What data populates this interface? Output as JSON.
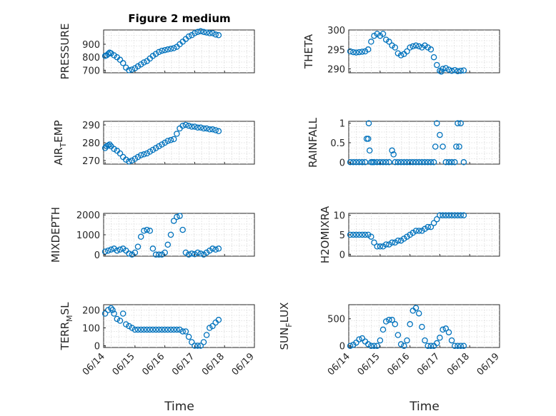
{
  "figure_title": "Figure 2 medium",
  "x_label": "Time",
  "x_tick_labels": [
    "06/14",
    "06/15",
    "06/16",
    "06/17",
    "06/18",
    "06/19"
  ],
  "marker_color": "#0072BD",
  "chart_data": [
    {
      "type": "scatter",
      "ylabel": "PRESSURE",
      "ylim": [
        680,
        1010
      ],
      "yticks": [
        700,
        800,
        900
      ],
      "ytick_labels": [
        "700",
        "800",
        "900"
      ],
      "series": [
        {
          "x": [
            0,
            0.05,
            0.1,
            0.15,
            0.2,
            0.3,
            0.4,
            0.5,
            0.6,
            0.7,
            0.8,
            0.9,
            1.0,
            1.1,
            1.2,
            1.3,
            1.4,
            1.5,
            1.6,
            1.7,
            1.8,
            1.9,
            2.0,
            2.1,
            2.2,
            2.3,
            2.4,
            2.5,
            2.6,
            2.7,
            2.8,
            2.9,
            3.0,
            3.1,
            3.2,
            3.3,
            3.4,
            3.5,
            3.6,
            3.7,
            3.8
          ],
          "y": [
            810,
            815,
            825,
            835,
            830,
            815,
            800,
            780,
            755,
            720,
            700,
            705,
            715,
            730,
            745,
            760,
            770,
            790,
            810,
            825,
            840,
            850,
            855,
            860,
            865,
            870,
            880,
            900,
            920,
            940,
            960,
            970,
            985,
            995,
            1000,
            995,
            990,
            985,
            985,
            975,
            970
          ]
        }
      ]
    },
    {
      "type": "scatter",
      "ylabel": "THETA",
      "ylim": [
        289,
        300
      ],
      "yticks": [
        290,
        295,
        300
      ],
      "ytick_labels": [
        "290",
        "295",
        "300"
      ],
      "series": [
        {
          "x": [
            0,
            0.1,
            0.2,
            0.3,
            0.4,
            0.5,
            0.6,
            0.7,
            0.8,
            0.9,
            1.0,
            1.1,
            1.2,
            1.3,
            1.4,
            1.5,
            1.6,
            1.7,
            1.8,
            1.9,
            2.0,
            2.1,
            2.2,
            2.3,
            2.4,
            2.5,
            2.6,
            2.7,
            2.8,
            2.9,
            3.0,
            3.05,
            3.1,
            3.2,
            3.3,
            3.4,
            3.5,
            3.6,
            3.7,
            3.8
          ],
          "y": [
            294.5,
            294.3,
            294.2,
            294.3,
            294.4,
            294.5,
            295,
            297,
            298.5,
            299,
            298.5,
            299,
            297.5,
            297,
            296,
            295.5,
            294,
            293.5,
            293.8,
            294.5,
            295.5,
            295.8,
            296,
            295.8,
            295.5,
            296,
            295.5,
            295,
            293,
            291,
            289.5,
            289.3,
            290,
            290.2,
            289.8,
            289.5,
            289.7,
            289.4,
            289.5,
            289.6
          ]
        }
      ]
    },
    {
      "type": "scatter",
      "ylabel": "AIR_T EMP",
      "ylim": [
        268,
        292
      ],
      "yticks": [
        270,
        280,
        290
      ],
      "ytick_labels": [
        "270",
        "280",
        "290"
      ],
      "series": [
        {
          "x": [
            0,
            0.05,
            0.1,
            0.15,
            0.2,
            0.3,
            0.4,
            0.5,
            0.6,
            0.7,
            0.8,
            0.9,
            1.0,
            1.1,
            1.2,
            1.3,
            1.4,
            1.5,
            1.6,
            1.7,
            1.8,
            1.9,
            2.0,
            2.1,
            2.2,
            2.3,
            2.4,
            2.5,
            2.6,
            2.7,
            2.8,
            2.9,
            3.0,
            3.1,
            3.2,
            3.3,
            3.4,
            3.5,
            3.6,
            3.7,
            3.8
          ],
          "y": [
            277,
            278,
            278.5,
            279,
            278,
            276.5,
            275.5,
            274,
            272,
            270.5,
            269.5,
            270,
            271,
            272,
            273,
            273.5,
            274,
            275,
            276,
            277,
            278,
            279,
            280,
            281,
            281.5,
            282,
            285,
            288,
            289.5,
            290,
            289.5,
            289,
            289,
            288.5,
            288.5,
            288,
            288,
            287.5,
            287.5,
            287,
            286.5
          ]
        }
      ]
    },
    {
      "type": "scatter",
      "ylabel": "RAINFALL",
      "ylim": [
        -0.05,
        1.05
      ],
      "yticks": [
        0,
        0.5,
        1
      ],
      "ytick_labels": [
        "0",
        "0.5",
        "1"
      ],
      "series": [
        {
          "x": [
            0,
            0.1,
            0.2,
            0.3,
            0.4,
            0.5,
            0.55,
            0.6,
            0.62,
            0.65,
            0.7,
            0.75,
            0.8,
            0.9,
            1.0,
            1.1,
            1.2,
            1.3,
            1.4,
            1.45,
            1.5,
            1.6,
            1.7,
            1.8,
            1.9,
            2.0,
            2.1,
            2.2,
            2.3,
            2.4,
            2.5,
            2.6,
            2.7,
            2.8,
            2.85,
            2.9,
            3.0,
            3.1,
            3.2,
            3.3,
            3.4,
            3.5,
            3.55,
            3.6,
            3.65,
            3.7,
            3.8
          ],
          "y": [
            0,
            0,
            0,
            0,
            0,
            0,
            0.6,
            0.6,
            1,
            0.3,
            0,
            0,
            0,
            0,
            0,
            0,
            0,
            0,
            0.3,
            0.2,
            0,
            0,
            0,
            0,
            0,
            0,
            0,
            0,
            0,
            0,
            0,
            0,
            0,
            0,
            0.4,
            1,
            0.7,
            0.4,
            0,
            0,
            0,
            0,
            0.4,
            1,
            0.4,
            1,
            0
          ]
        }
      ]
    },
    {
      "type": "scatter",
      "ylabel": "MIXDEPTH",
      "ylim": [
        -80,
        2080
      ],
      "yticks": [
        0,
        1000,
        2000
      ],
      "ytick_labels": [
        "0",
        "1000",
        "2000"
      ],
      "series": [
        {
          "x": [
            0,
            0.1,
            0.2,
            0.3,
            0.4,
            0.5,
            0.6,
            0.7,
            0.8,
            0.9,
            1.0,
            1.1,
            1.2,
            1.3,
            1.4,
            1.5,
            1.6,
            1.7,
            1.8,
            1.9,
            2.0,
            2.1,
            2.2,
            2.3,
            2.4,
            2.5,
            2.6,
            2.7,
            2.8,
            2.9,
            3.0,
            3.1,
            3.2,
            3.3,
            3.4,
            3.5,
            3.6,
            3.7,
            3.8
          ],
          "y": [
            150,
            200,
            250,
            300,
            200,
            250,
            300,
            200,
            50,
            0,
            100,
            400,
            900,
            1200,
            1250,
            1200,
            300,
            0,
            0,
            0,
            100,
            500,
            1000,
            1700,
            1900,
            1950,
            1250,
            100,
            0,
            50,
            20,
            100,
            50,
            0,
            100,
            200,
            300,
            250,
            300
          ]
        }
      ]
    },
    {
      "type": "scatter",
      "ylabel": "H2OMIXRA",
      "ylim": [
        -0.5,
        10.5
      ],
      "yticks": [
        0,
        5,
        10
      ],
      "ytick_labels": [
        "0",
        "5",
        "10"
      ],
      "series": [
        {
          "x": [
            0,
            0.1,
            0.2,
            0.3,
            0.4,
            0.5,
            0.6,
            0.7,
            0.8,
            0.9,
            1.0,
            1.1,
            1.2,
            1.3,
            1.4,
            1.5,
            1.6,
            1.7,
            1.8,
            1.9,
            2.0,
            2.1,
            2.2,
            2.3,
            2.4,
            2.5,
            2.6,
            2.7,
            2.8,
            2.9,
            3.0,
            3.1,
            3.2,
            3.3,
            3.4,
            3.5,
            3.6,
            3.7,
            3.8
          ],
          "y": [
            5,
            5,
            5,
            5,
            5,
            5,
            5,
            4.5,
            3,
            2,
            2,
            2,
            2.5,
            2.5,
            3,
            3,
            3.5,
            3.5,
            4,
            4.5,
            5,
            5.5,
            6,
            6,
            6,
            6.5,
            7,
            7,
            8,
            9,
            10,
            10,
            10,
            10,
            10,
            10,
            10,
            10,
            10
          ]
        }
      ]
    },
    {
      "type": "scatter",
      "ylabel": "TERR_M SL",
      "ylim": [
        -10,
        230
      ],
      "yticks": [
        0,
        100,
        200
      ],
      "ytick_labels": [
        "0",
        "100",
        "200"
      ],
      "series": [
        {
          "x": [
            0,
            0.1,
            0.2,
            0.25,
            0.3,
            0.4,
            0.5,
            0.6,
            0.7,
            0.8,
            0.9,
            1.0,
            1.1,
            1.2,
            1.3,
            1.4,
            1.5,
            1.6,
            1.7,
            1.8,
            1.9,
            2.0,
            2.1,
            2.2,
            2.3,
            2.4,
            2.5,
            2.6,
            2.7,
            2.8,
            2.9,
            3.0,
            3.1,
            3.2,
            3.3,
            3.4,
            3.5,
            3.6,
            3.7,
            3.8
          ],
          "y": [
            180,
            200,
            210,
            200,
            180,
            150,
            140,
            180,
            120,
            110,
            100,
            90,
            90,
            90,
            90,
            90,
            90,
            90,
            90,
            90,
            90,
            90,
            90,
            90,
            90,
            90,
            90,
            80,
            80,
            50,
            20,
            0,
            0,
            0,
            20,
            60,
            100,
            110,
            130,
            145
          ]
        }
      ]
    },
    {
      "type": "scatter",
      "ylabel": "SUN_F LUX",
      "ylim": [
        -30,
        760
      ],
      "yticks": [
        0,
        500
      ],
      "ytick_labels": [
        "0",
        "500"
      ],
      "series": [
        {
          "x": [
            0,
            0.1,
            0.2,
            0.3,
            0.4,
            0.5,
            0.6,
            0.7,
            0.8,
            0.9,
            1.0,
            1.1,
            1.2,
            1.3,
            1.4,
            1.5,
            1.6,
            1.7,
            1.8,
            1.9,
            2.0,
            2.1,
            2.2,
            2.3,
            2.4,
            2.5,
            2.6,
            2.7,
            2.8,
            2.9,
            3.0,
            3.1,
            3.2,
            3.3,
            3.4,
            3.5,
            3.6,
            3.7,
            3.8
          ],
          "y": [
            0,
            20,
            60,
            120,
            140,
            80,
            30,
            0,
            0,
            0,
            100,
            300,
            450,
            480,
            480,
            400,
            200,
            30,
            0,
            100,
            400,
            650,
            700,
            600,
            350,
            100,
            0,
            0,
            0,
            50,
            150,
            300,
            320,
            250,
            100,
            0,
            0,
            0,
            0
          ]
        }
      ]
    }
  ]
}
